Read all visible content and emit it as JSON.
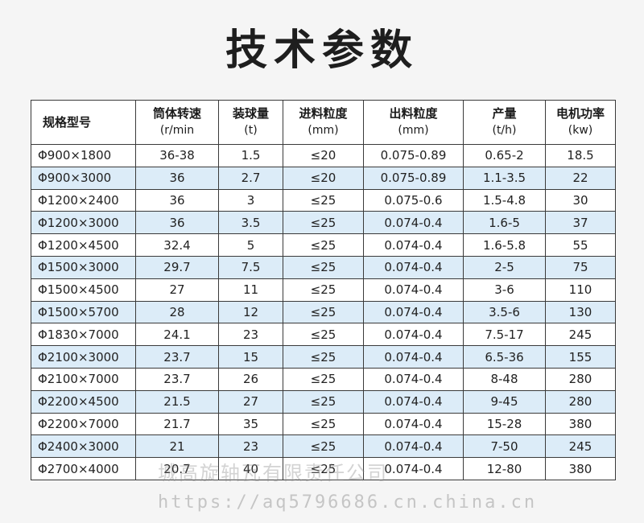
{
  "title": "技术参数",
  "table": {
    "headers": [
      {
        "label": "规格型号",
        "unit": ""
      },
      {
        "label": "筒体转速",
        "unit": "(r/min"
      },
      {
        "label": "装球量",
        "unit": "(t)"
      },
      {
        "label": "进料粒度",
        "unit": "(mm)"
      },
      {
        "label": "出料粒度",
        "unit": "(mm)"
      },
      {
        "label": "产量",
        "unit": "(t/h)"
      },
      {
        "label": "电机功率",
        "unit": "(kw)"
      }
    ],
    "rows": [
      [
        "Φ900×1800",
        "36-38",
        "1.5",
        "≤20",
        "0.075-0.89",
        "0.65-2",
        "18.5"
      ],
      [
        "Φ900×3000",
        "36",
        "2.7",
        "≤20",
        "0.075-0.89",
        "1.1-3.5",
        "22"
      ],
      [
        "Φ1200×2400",
        "36",
        "3",
        "≤25",
        "0.075-0.6",
        "1.5-4.8",
        "30"
      ],
      [
        "Φ1200×3000",
        "36",
        "3.5",
        "≤25",
        "0.074-0.4",
        "1.6-5",
        "37"
      ],
      [
        "Φ1200×4500",
        "32.4",
        "5",
        "≤25",
        "0.074-0.4",
        "1.6-5.8",
        "55"
      ],
      [
        "Φ1500×3000",
        "29.7",
        "7.5",
        "≤25",
        "0.074-0.4",
        "2-5",
        "75"
      ],
      [
        "Φ1500×4500",
        "27",
        "11",
        "≤25",
        "0.074-0.4",
        "3-6",
        "110"
      ],
      [
        "Φ1500×5700",
        "28",
        "12",
        "≤25",
        "0.074-0.4",
        "3.5-6",
        "130"
      ],
      [
        "Φ1830×7000",
        "24.1",
        "23",
        "≤25",
        "0.074-0.4",
        "7.5-17",
        "245"
      ],
      [
        "Φ2100×3000",
        "23.7",
        "15",
        "≤25",
        "0.074-0.4",
        "6.5-36",
        "155"
      ],
      [
        "Φ2100×7000",
        "23.7",
        "26",
        "≤25",
        "0.074-0.4",
        "8-48",
        "280"
      ],
      [
        "Φ2200×4500",
        "21.5",
        "27",
        "≤25",
        "0.074-0.4",
        "9-45",
        "280"
      ],
      [
        "Φ2200×7000",
        "21.7",
        "35",
        "≤25",
        "0.074-0.4",
        "15-28",
        "380"
      ],
      [
        "Φ2400×3000",
        "21",
        "23",
        "≤25",
        "0.074-0.4",
        "7-50",
        "245"
      ],
      [
        "Φ2700×4000",
        "20.7",
        "40",
        "≤25",
        "0.074-0.4",
        "12-80",
        "380"
      ]
    ],
    "alt_row_color": "#dcecf8"
  },
  "watermark": {
    "company": "城高旋轴瓦有限责任公司",
    "url": "https://aq5796686.cn.china.cn"
  }
}
